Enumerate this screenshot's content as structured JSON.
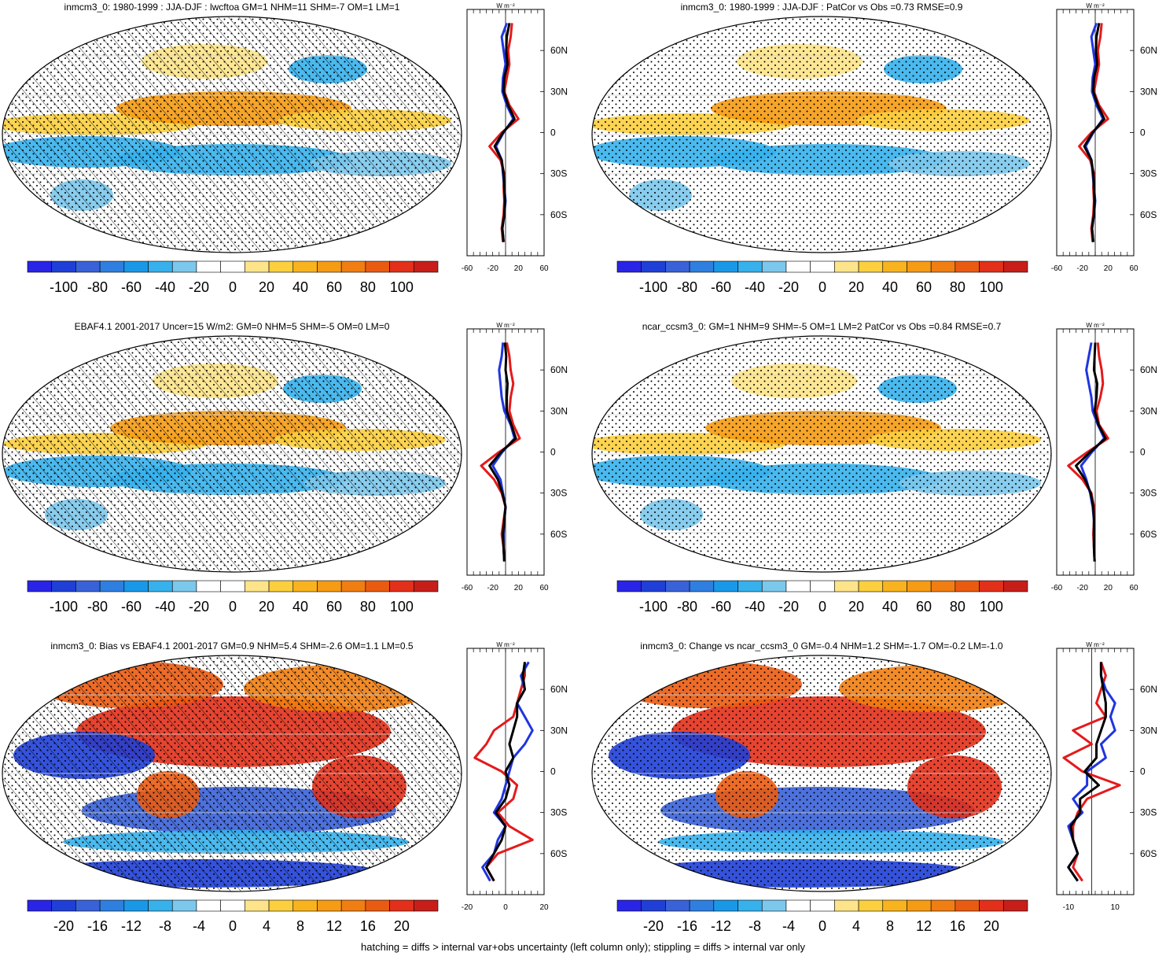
{
  "footnote": "hatching = diffs > internal var+obs uncertainty (left column only); stippling = diffs > internal var only",
  "palette": [
    "#2a24e6",
    "#1f3fd7",
    "#3a62d8",
    "#2f7fe0",
    "#1a98e8",
    "#36b1ec",
    "#7cc8ec",
    "#ffffff",
    "#ffffff",
    "#fde48a",
    "#fccf3f",
    "#f8b31e",
    "#f59b14",
    "#f07e12",
    "#ea5b12",
    "#e2301a",
    "#c81e1a"
  ],
  "chart_data": [
    {
      "type": "heatmap",
      "title": "inmcm3_0: 1980-1999 : JJA-DJF : lwcftoa GM=1 NHM=11 SHM=-7 OM=1 LM=1",
      "colorbar_ticks": [
        "-100",
        "-80",
        "-60",
        "-40",
        "-20",
        "0",
        "20",
        "40",
        "60",
        "80",
        "100"
      ],
      "hatching": true,
      "profile": {
        "unit": "W m⁻²",
        "xlim": [
          -60,
          60
        ],
        "x_ticks": [
          "-60",
          "-20",
          "20",
          "60"
        ],
        "y_ticks": [
          "60N",
          "30N",
          "0",
          "30S",
          "60S"
        ],
        "lat": [
          -80,
          -70,
          -60,
          -50,
          -40,
          -30,
          -20,
          -10,
          0,
          10,
          20,
          30,
          40,
          50,
          60,
          70,
          80
        ],
        "series": [
          {
            "color": "#e41a1c",
            "values": [
              -4,
              -6,
              -3,
              -2,
              -3,
              -2,
              -8,
              -25,
              -6,
              20,
              6,
              -2,
              2,
              6,
              4,
              8,
              10
            ]
          },
          {
            "color": "#1f35e0",
            "values": [
              -3,
              -5,
              -2,
              0,
              -2,
              -4,
              -6,
              -15,
              -3,
              12,
              2,
              -5,
              -4,
              0,
              -3,
              -6,
              2
            ]
          },
          {
            "color": "#000000",
            "values": [
              -3,
              -5,
              -2,
              -1,
              -2,
              -3,
              -6,
              -17,
              -4,
              14,
              4,
              -3,
              -2,
              3,
              1,
              2,
              6
            ]
          }
        ]
      }
    },
    {
      "type": "heatmap",
      "title": "inmcm3_0: 1980-1999 : JJA-DJF : PatCor vs Obs =0.73 RMSE=0.9",
      "colorbar_ticks": [
        "-100",
        "-80",
        "-60",
        "-40",
        "-20",
        "0",
        "20",
        "40",
        "60",
        "80",
        "100"
      ],
      "hatching": false,
      "profile": {
        "unit": "W m⁻²",
        "xlim": [
          -60,
          60
        ],
        "x_ticks": [
          "-60",
          "-20",
          "20",
          "60"
        ],
        "y_ticks": [
          "60N",
          "30N",
          "0",
          "30S",
          "60S"
        ],
        "lat": [
          -80,
          -70,
          -60,
          -50,
          -40,
          -30,
          -20,
          -10,
          0,
          10,
          20,
          30,
          40,
          50,
          60,
          70,
          80
        ],
        "series": [
          {
            "color": "#e41a1c",
            "values": [
              -4,
              -6,
              -3,
              -2,
              -3,
              -2,
              -8,
              -25,
              -6,
              20,
              6,
              -2,
              2,
              6,
              4,
              8,
              10
            ]
          },
          {
            "color": "#1f35e0",
            "values": [
              -3,
              -5,
              -2,
              0,
              -2,
              -4,
              -6,
              -15,
              -3,
              12,
              2,
              -5,
              -4,
              0,
              -3,
              -6,
              2
            ]
          },
          {
            "color": "#000000",
            "values": [
              -3,
              -5,
              -2,
              -1,
              -2,
              -3,
              -6,
              -17,
              -4,
              14,
              4,
              -3,
              -2,
              3,
              1,
              2,
              6
            ]
          }
        ]
      }
    },
    {
      "type": "heatmap",
      "title": "EBAF4.1 2001-2017 Uncer=15 W/m2: GM=0 NHM=5 SHM=-5 OM=0 LM=0",
      "colorbar_ticks": [
        "-100",
        "-80",
        "-60",
        "-40",
        "-20",
        "0",
        "20",
        "40",
        "60",
        "80",
        "100"
      ],
      "hatching": true,
      "profile": {
        "unit": "W m⁻²",
        "xlim": [
          -60,
          60
        ],
        "x_ticks": [
          "-60",
          "-20",
          "20",
          "60"
        ],
        "y_ticks": [
          "60N",
          "30N",
          "0",
          "30S",
          "60S"
        ],
        "lat": [
          -80,
          -70,
          -60,
          -50,
          -40,
          -30,
          -20,
          -10,
          0,
          10,
          20,
          30,
          40,
          50,
          60,
          70,
          80
        ],
        "series": [
          {
            "color": "#e41a1c",
            "values": [
              -2,
              -3,
              -6,
              -3,
              0,
              -6,
              -18,
              -38,
              -10,
              22,
              12,
              6,
              8,
              12,
              8,
              6,
              2
            ]
          },
          {
            "color": "#1f35e0",
            "values": [
              -2,
              -3,
              -3,
              -2,
              0,
              -4,
              -8,
              -20,
              -5,
              14,
              8,
              -2,
              -6,
              -8,
              -10,
              -6,
              -4
            ]
          },
          {
            "color": "#000000",
            "values": [
              -2,
              -3,
              -4,
              -2,
              0,
              -5,
              -12,
              -25,
              -7,
              16,
              9,
              2,
              2,
              3,
              0,
              1,
              -1
            ]
          }
        ]
      }
    },
    {
      "type": "heatmap",
      "title": "ncar_ccsm3_0: GM=1 NHM=9 SHM=-5 OM=1 LM=2 PatCor vs Obs =0.84 RMSE=0.7",
      "colorbar_ticks": [
        "-100",
        "-80",
        "-60",
        "-40",
        "-20",
        "0",
        "20",
        "40",
        "60",
        "80",
        "100"
      ],
      "hatching": false,
      "profile": {
        "unit": "W m⁻²",
        "xlim": [
          -60,
          60
        ],
        "x_ticks": [
          "-60",
          "-20",
          "20",
          "60"
        ],
        "y_ticks": [
          "60N",
          "30N",
          "0",
          "30S",
          "60S"
        ],
        "lat": [
          -80,
          -70,
          -60,
          -50,
          -40,
          -30,
          -20,
          -10,
          0,
          10,
          20,
          30,
          40,
          50,
          60,
          70,
          80
        ],
        "series": [
          {
            "color": "#e41a1c",
            "values": [
              -1,
              -2,
              -3,
              -2,
              -2,
              -6,
              -20,
              -42,
              -12,
              20,
              6,
              2,
              8,
              12,
              10,
              6,
              4
            ]
          },
          {
            "color": "#1f35e0",
            "values": [
              -1,
              -2,
              -2,
              -2,
              -4,
              -8,
              -14,
              -22,
              -5,
              14,
              4,
              -4,
              -6,
              -10,
              -14,
              -10,
              -6
            ]
          },
          {
            "color": "#000000",
            "values": [
              -1,
              -2,
              -2,
              -2,
              -3,
              -7,
              -16,
              -30,
              -8,
              16,
              5,
              -1,
              2,
              3,
              -2,
              -1,
              0
            ]
          }
        ]
      }
    },
    {
      "type": "heatmap",
      "title": "inmcm3_0: Bias vs EBAF4.1 2001-2017 GM=0.9 NHM=5.4 SHM=-2.6 OM=1.1 LM=0.5",
      "colorbar_ticks": [
        "-20",
        "-16",
        "-12",
        "-8",
        "-4",
        "0",
        "4",
        "8",
        "12",
        "16",
        "20"
      ],
      "hatching": true,
      "profile": {
        "unit": "W m⁻²",
        "xlim": [
          -20,
          20
        ],
        "x_ticks": [
          "-20",
          "0",
          "20"
        ],
        "y_ticks": [
          "60N",
          "30N",
          "0",
          "30S",
          "60S"
        ],
        "lat": [
          -80,
          -70,
          -60,
          -50,
          -40,
          -30,
          -20,
          -10,
          0,
          10,
          20,
          30,
          40,
          50,
          60,
          70,
          80
        ],
        "series": [
          {
            "color": "#e41a1c",
            "values": [
              -6,
              -10,
              -4,
              14,
              2,
              -4,
              4,
              6,
              -2,
              -16,
              -10,
              -6,
              4,
              6,
              8,
              10,
              10
            ]
          },
          {
            "color": "#1f35e0",
            "values": [
              -8,
              -12,
              -6,
              -4,
              0,
              -6,
              -2,
              0,
              2,
              4,
              10,
              14,
              10,
              6,
              10,
              8,
              12
            ]
          },
          {
            "color": "#000000",
            "values": [
              -6,
              -10,
              -6,
              -2,
              0,
              -5,
              0,
              2,
              0,
              4,
              2,
              4,
              6,
              6,
              10,
              9,
              10
            ]
          }
        ]
      }
    },
    {
      "type": "heatmap",
      "title": "inmcm3_0: Change vs ncar_ccsm3_0 GM=-0.4 NHM=1.2 SHM=-1.7 OM=-0.2 LM=-1.0",
      "colorbar_ticks": [
        "-20",
        "-16",
        "-12",
        "-8",
        "-4",
        "0",
        "4",
        "8",
        "12",
        "16",
        "20"
      ],
      "hatching": false,
      "profile": {
        "unit": "W m⁻²",
        "xlim": [
          -15,
          18
        ],
        "x_ticks": [
          "-10",
          "10"
        ],
        "y_ticks": [
          "60N",
          "30N",
          "0",
          "30S",
          "60S"
        ],
        "lat": [
          -80,
          -70,
          -60,
          -50,
          -40,
          -30,
          -20,
          -10,
          0,
          10,
          20,
          30,
          40,
          50,
          60,
          70,
          80
        ],
        "series": [
          {
            "color": "#e41a1c",
            "values": [
              -4,
              -8,
              -6,
              -8,
              -8,
              -6,
              -2,
              12,
              -4,
              -12,
              0,
              -8,
              6,
              2,
              4,
              6,
              4
            ]
          },
          {
            "color": "#1f35e0",
            "values": [
              -6,
              -10,
              -6,
              -8,
              -10,
              -4,
              -8,
              -2,
              -2,
              6,
              4,
              10,
              8,
              10,
              6,
              4,
              4
            ]
          },
          {
            "color": "#000000",
            "values": [
              -6,
              -10,
              -6,
              -8,
              -9,
              -5,
              -5,
              3,
              -3,
              2,
              2,
              4,
              6,
              6,
              5,
              4,
              4
            ]
          }
        ]
      }
    }
  ]
}
